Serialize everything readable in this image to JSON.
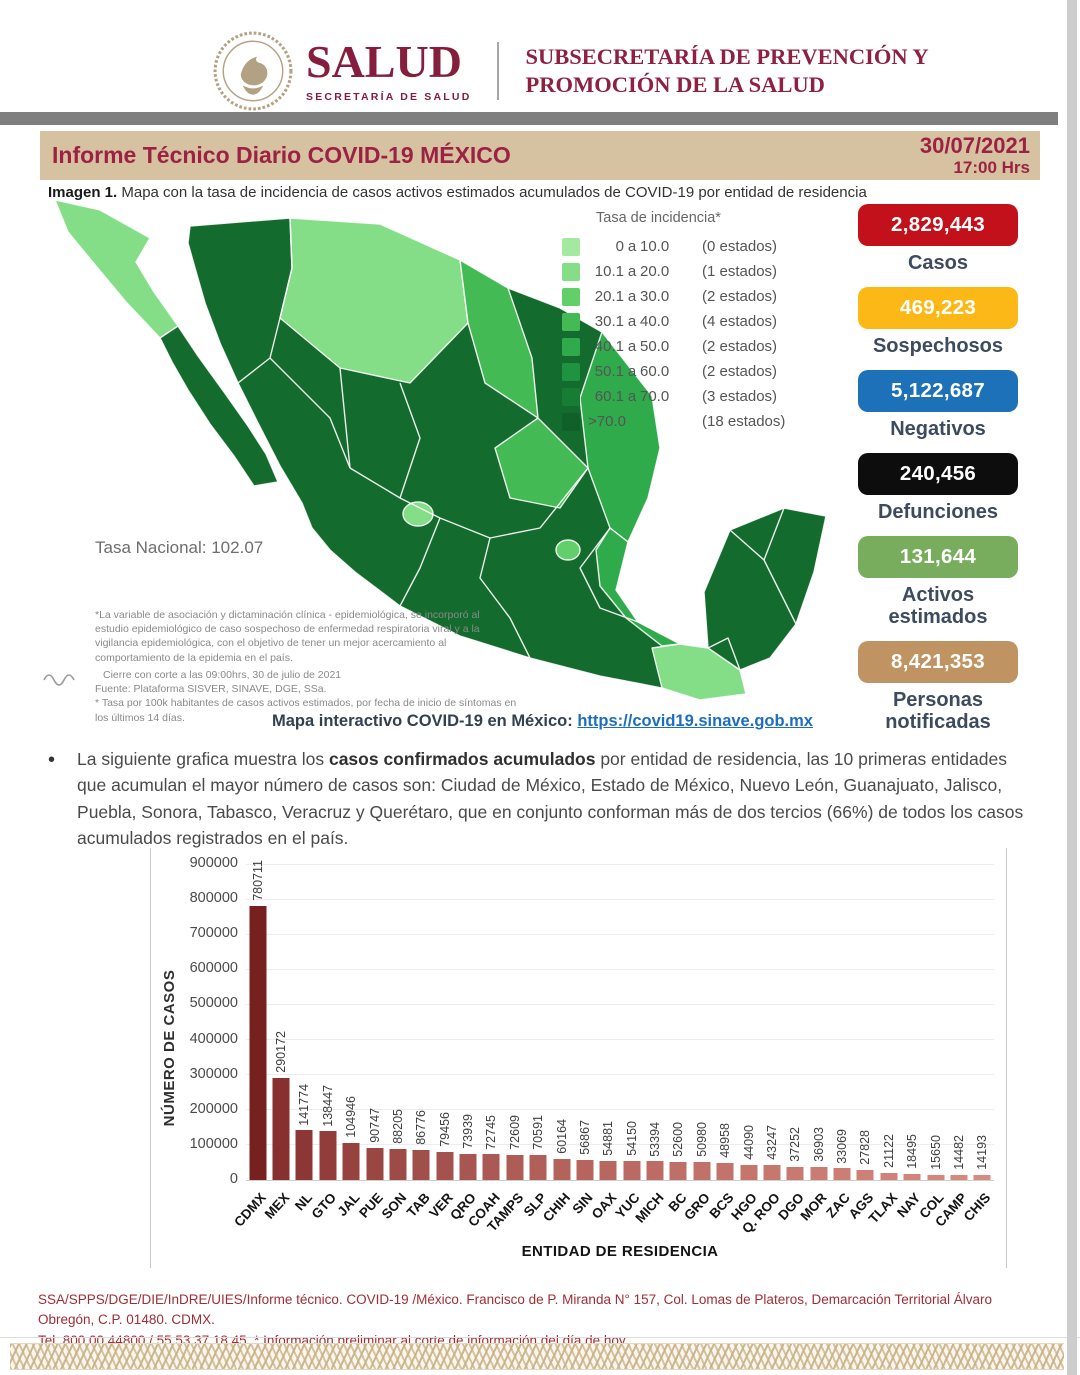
{
  "header": {
    "brand": "SALUD",
    "brand_sub": "SECRETARÍA DE SALUD",
    "sub1": "SUBSECRETARÍA DE PREVENCIÓN Y",
    "sub2": "PROMOCIÓN DE LA SALUD"
  },
  "title_bar": {
    "title": "Informe Técnico Diario COVID-19 MÉXICO",
    "date": "30/07/2021",
    "time": "17:00 Hrs",
    "background": "#d6c1a0",
    "text_color": "#9b2242"
  },
  "caption": {
    "label": "Imagen 1.",
    "text": " Mapa con la tasa de incidencia de casos activos estimados acumulados de COVID-19 por entidad de residencia"
  },
  "map": {
    "legend": {
      "title": "Tasa de incidencia*",
      "rows": [
        {
          "from": "0",
          "to": "10.0",
          "count": "(0 estados)",
          "color": "#a5e8a0"
        },
        {
          "from": "10.1",
          "to": "20.0",
          "count": "(1 estados)",
          "color": "#84dd87"
        },
        {
          "from": "20.1",
          "to": "30.0",
          "count": "(2 estados)",
          "color": "#62cf6b"
        },
        {
          "from": "30.1",
          "to": "40.0",
          "count": "(4 estados)",
          "color": "#44ba55"
        },
        {
          "from": "40.1",
          "to": "50.0",
          "count": "(2 estados)",
          "color": "#2fab4b"
        },
        {
          "from": "50.1",
          "to": "60.0",
          "count": "(2 estados)",
          "color": "#1f9440"
        },
        {
          "from": "60.1",
          "to": "70.0",
          "count": "(3 estados)",
          "color": "#177d35"
        },
        {
          "from": ">70.0",
          "to": null,
          "count": "(18 estados)",
          "color": "#10602a"
        }
      ]
    },
    "tones": {
      "dark": "#146b2e",
      "light": "#84dd87",
      "light2": "#62cf6b",
      "medium": "#2fab4b",
      "medium2": "#44ba55"
    },
    "tasa_nacional": "Tasa Nacional: 102.07",
    "fn1": "*La variable de asociación y dictaminación clínica - epidemiológica, se incorporó al estudio epidemiológico de caso sospechoso de enfermedad respiratoria viral y a la vigilancia epidemiológica, con el objetivo de tener un mejor acercamiento al comportamiento de la epidemia en el país.",
    "fn2a": "Cierre con corte a las 09:00hrs, 30 de julio de 2021",
    "fn2b": "Fuente: Plataforma SISVER, SINAVE, DGE, SSa.",
    "fn2c": "* Tasa por 100k habitantes de casos activos estimados, por fecha de inicio de síntomas en los últimos 14 días."
  },
  "stats": [
    {
      "value": "2,829,443",
      "label": "Casos",
      "color": "#c3111c"
    },
    {
      "value": "469,223",
      "label": "Sospechosos",
      "color": "#fbb817"
    },
    {
      "value": "5,122,687",
      "label": "Negativos",
      "color": "#1d71b8"
    },
    {
      "value": "240,456",
      "label": "Defunciones",
      "color": "#0d0d0d"
    },
    {
      "value": "131,644",
      "label": "Activos estimados",
      "color": "#77ad5c"
    },
    {
      "value": "8,421,353",
      "label": "Personas notificadas",
      "color": "#bf9462"
    }
  ],
  "link": {
    "prefix": "Mapa interactivo COVID-19 en México: ",
    "url": "https://covid19.sinave.gob.mx"
  },
  "paragraph": {
    "segments": [
      {
        "text": "La siguiente grafica muestra los ",
        "bold": false
      },
      {
        "text": "casos confirmados acumulados",
        "bold": true
      },
      {
        "text": " por entidad de residencia, las 10 primeras entidades que acumulan el mayor número de casos son: Ciudad de México, Estado de México, Nuevo León, Guanajuato, Jalisco, Puebla, Sonora, Tabasco, Veracruz y Querétaro, que en conjunto conforman más de dos tercios (66%) de todos los casos acumulados registrados en el país.",
        "bold": false
      }
    ]
  },
  "chart_data": {
    "type": "bar",
    "categories": [
      "CDMX",
      "MEX",
      "NL",
      "GTO",
      "JAL",
      "PUE",
      "SON",
      "TAB",
      "VER",
      "QRO",
      "COAH",
      "TAMPS",
      "SLP",
      "CHIH",
      "SIN",
      "OAX",
      "YUC",
      "MICH",
      "BC",
      "GRO",
      "BCS",
      "HGO",
      "Q. ROO",
      "DGO",
      "MOR",
      "ZAC",
      "AGS",
      "TLAX",
      "NAY",
      "COL",
      "CAMP",
      "CHIS"
    ],
    "values": [
      780711,
      290172,
      141774,
      138447,
      104946,
      90747,
      88205,
      86776,
      79456,
      73939,
      72745,
      72609,
      70591,
      60164,
      56867,
      54881,
      54150,
      53394,
      52600,
      50980,
      48958,
      44090,
      43247,
      37252,
      36903,
      33069,
      27828,
      21122,
      18495,
      15650,
      14482,
      14193
    ],
    "xlabel": "ENTIDAD DE RESIDENCIA",
    "ylabel": "NÚMERO DE CASOS",
    "ylim": [
      0,
      900000
    ],
    "ytick_step": 100000,
    "grid": true,
    "legend_position": "none",
    "bar_color_dark": "#772020",
    "bar_color_light": "#d78a80"
  },
  "footer": {
    "line1": "SSA/SPPS/DGE/DIE/InDRE/UIES/Informe técnico. COVID-19 /México. Francisco de P. Miranda N° 157, Col. Lomas de Plateros, Demarcación Territorial Álvaro Obregón, C.P. 01480. CDMX.",
    "line2": "Tel. 800 00 44800 / 55 53 37 18 45. * Información preliminar al corte de información del día de hoy."
  }
}
